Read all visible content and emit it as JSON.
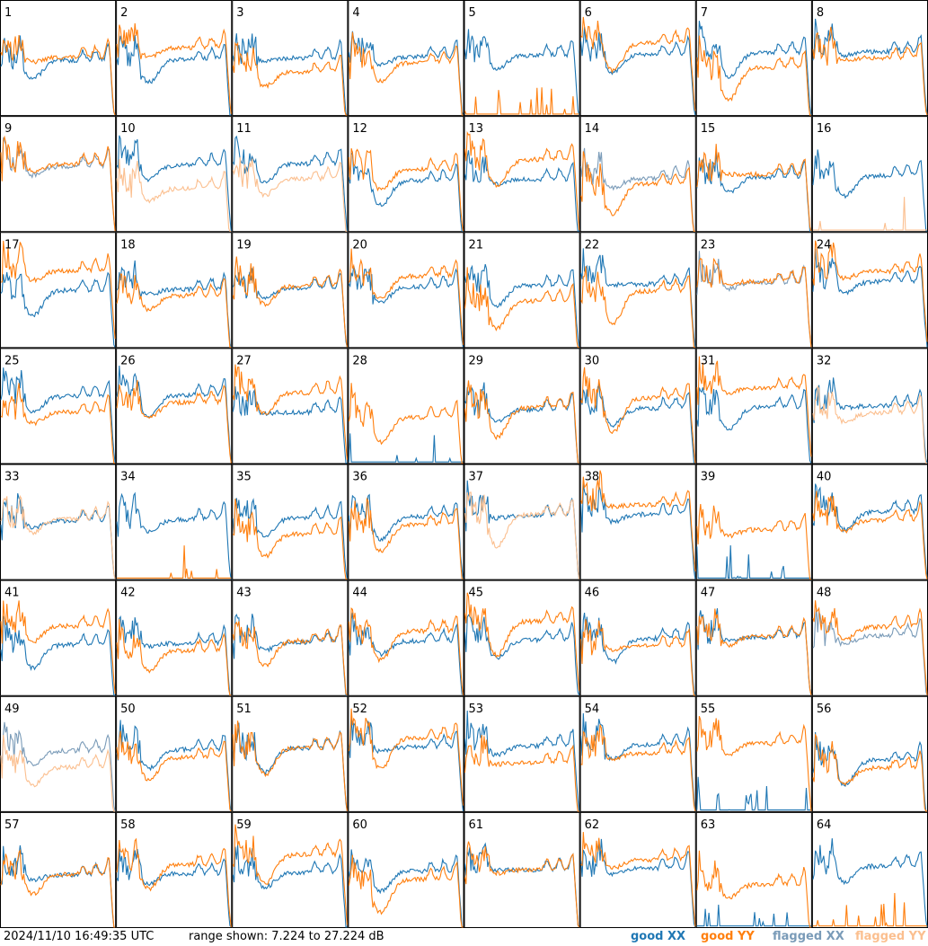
{
  "chart_data": {
    "type": "line",
    "title": "",
    "xlabel": "",
    "ylabel": "",
    "grid_rows": 8,
    "grid_cols": 8,
    "panel_labels": [
      "1",
      "2",
      "3",
      "4",
      "5",
      "6",
      "7",
      "8",
      "9",
      "10",
      "11",
      "12",
      "13",
      "14",
      "15",
      "16",
      "17",
      "18",
      "19",
      "20",
      "21",
      "22",
      "23",
      "24",
      "25",
      "26",
      "27",
      "28",
      "29",
      "30",
      "31",
      "32",
      "33",
      "34",
      "35",
      "36",
      "37",
      "38",
      "39",
      "40",
      "41",
      "42",
      "43",
      "44",
      "45",
      "46",
      "47",
      "48",
      "49",
      "50",
      "51",
      "52",
      "53",
      "54",
      "55",
      "56",
      "57",
      "58",
      "59",
      "60",
      "61",
      "62",
      "63",
      "64"
    ],
    "ylim_db": [
      7.224,
      27.224
    ],
    "series": [
      {
        "name": "good XX",
        "color": "#1f77b4"
      },
      {
        "name": "good YY",
        "color": "#ff7f0e"
      },
      {
        "name": "flagged XX",
        "color": "#7a9bb8"
      },
      {
        "name": "flagged YY",
        "color": "#fbbf8f"
      }
    ],
    "flagged_xx_panels": [
      "9",
      "14",
      "23",
      "48",
      "49"
    ],
    "flagged_yy_panels": [
      "10",
      "11",
      "16",
      "32",
      "33",
      "37",
      "49"
    ],
    "dead_xx_panels": [
      "28",
      "39",
      "55",
      "63"
    ],
    "dead_yy_panels": [
      "5",
      "16",
      "34",
      "64"
    ]
  },
  "footer": {
    "timestamp": "2024/11/10 16:49:35 UTC",
    "range_text": "range shown: 7.224 to 27.224 dB"
  },
  "legend": {
    "good_xx": "good XX",
    "good_yy": "good YY",
    "flagged_xx": "flagged XX",
    "flagged_yy": "flagged YY"
  },
  "colors": {
    "good_xx": "#1f77b4",
    "good_yy": "#ff7f0e",
    "flagged_xx": "#7a9bb8",
    "flagged_yy": "#fbbf8f"
  }
}
